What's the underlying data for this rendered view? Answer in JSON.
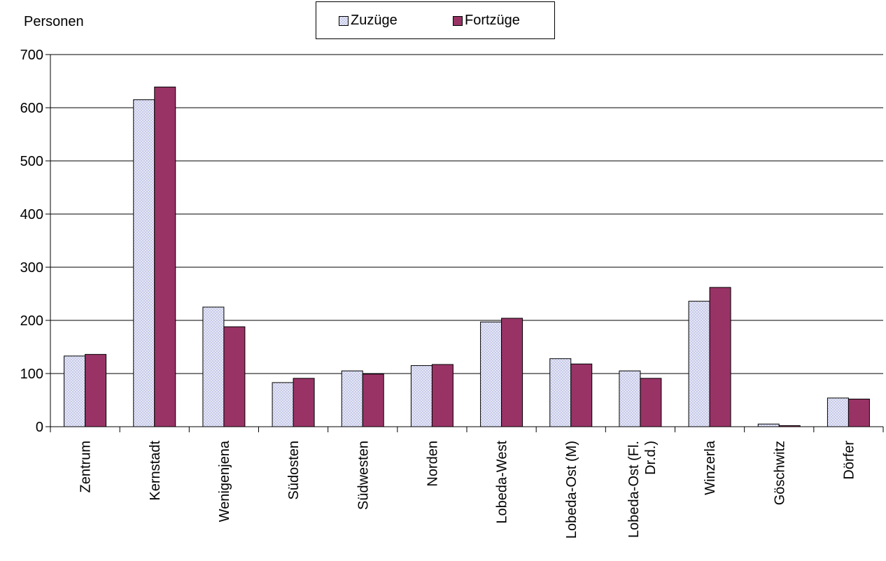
{
  "chart_data": {
    "type": "bar",
    "ylabel": "Personen",
    "ylim": [
      0,
      700
    ],
    "yticks": [
      0,
      100,
      200,
      300,
      400,
      500,
      600,
      700
    ],
    "grid": true,
    "legend_position": "top-center",
    "categories": [
      "Zentrum",
      "Kernstadt",
      "Wenigenjena",
      "Südosten",
      "Südwesten",
      "Norden",
      "Lobeda-West",
      "Lobeda-Ost (M)",
      "Lobeda-Ost (Fl. Dr.d.)",
      "Winzerla",
      "Göschwitz",
      "Dörfer"
    ],
    "series": [
      {
        "name": "Zuzüge",
        "color": "#e8eaf8",
        "pattern": "crosshatch",
        "values": [
          133,
          615,
          225,
          83,
          105,
          115,
          197,
          128,
          105,
          236,
          5,
          54
        ]
      },
      {
        "name": "Fortzüge",
        "color": "#993366",
        "pattern": "solid",
        "values": [
          136,
          639,
          188,
          91,
          99,
          117,
          204,
          118,
          91,
          262,
          2,
          52
        ]
      }
    ]
  }
}
